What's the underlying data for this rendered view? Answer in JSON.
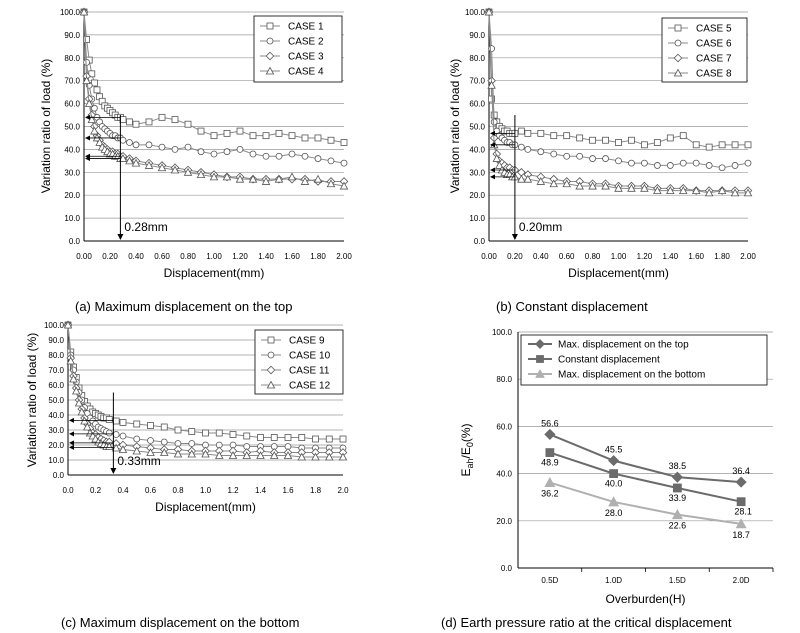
{
  "chart_data": [
    {
      "type": "scatter",
      "panel": "a",
      "caption": "(a)  Maximum displacement on the top",
      "xlabel": "Displacement(mm)",
      "ylabel": "Variation ratio of load (%)",
      "xlim": [
        0,
        2.0
      ],
      "ylim": [
        0,
        100
      ],
      "xticks": [
        "0.00",
        "0.20",
        "0.40",
        "0.60",
        "0.80",
        "1.00",
        "1.20",
        "1.40",
        "1.60",
        "1.80",
        "2.00"
      ],
      "yticks": [
        "0.0",
        "10.0",
        "20.0",
        "30.0",
        "40.0",
        "50.0",
        "60.0",
        "70.0",
        "80.0",
        "90.0",
        "100.0"
      ],
      "grid": true,
      "legend_position": "top-right",
      "annotation": {
        "text": "0.28mm",
        "x": 0.28
      },
      "series": [
        {
          "name": "CASE 1",
          "marker": "square",
          "x": [
            0,
            0.02,
            0.04,
            0.06,
            0.08,
            0.1,
            0.12,
            0.14,
            0.16,
            0.18,
            0.2,
            0.22,
            0.24,
            0.26,
            0.28,
            0.3,
            0.35,
            0.4,
            0.5,
            0.6,
            0.7,
            0.8,
            0.9,
            1.0,
            1.1,
            1.2,
            1.3,
            1.4,
            1.5,
            1.6,
            1.7,
            1.8,
            1.9,
            2.0
          ],
          "y": [
            100,
            88,
            79,
            73,
            69,
            66,
            63,
            61,
            59,
            58,
            57,
            56,
            55,
            54,
            54,
            53,
            52,
            51,
            52,
            54,
            53,
            51,
            48,
            46,
            47,
            48,
            46,
            46,
            47,
            46,
            45,
            45,
            44,
            43
          ]
        },
        {
          "name": "CASE 2",
          "marker": "circle",
          "x": [
            0,
            0.02,
            0.04,
            0.06,
            0.08,
            0.1,
            0.12,
            0.14,
            0.16,
            0.18,
            0.2,
            0.22,
            0.24,
            0.26,
            0.28,
            0.3,
            0.35,
            0.4,
            0.5,
            0.6,
            0.7,
            0.8,
            0.9,
            1.0,
            1.1,
            1.2,
            1.3,
            1.4,
            1.5,
            1.6,
            1.7,
            1.8,
            1.9,
            2.0
          ],
          "y": [
            100,
            78,
            68,
            62,
            58,
            54,
            52,
            50,
            49,
            48,
            47,
            46,
            46,
            45,
            45,
            44,
            43,
            42,
            42,
            41,
            40,
            41,
            39,
            38,
            39,
            40,
            38,
            37,
            37,
            38,
            37,
            36,
            35,
            34
          ]
        },
        {
          "name": "CASE 3",
          "marker": "diamond",
          "x": [
            0,
            0.02,
            0.04,
            0.06,
            0.08,
            0.1,
            0.12,
            0.14,
            0.16,
            0.18,
            0.2,
            0.22,
            0.24,
            0.26,
            0.28,
            0.3,
            0.35,
            0.4,
            0.5,
            0.6,
            0.7,
            0.8,
            0.9,
            1.0,
            1.1,
            1.2,
            1.3,
            1.4,
            1.5,
            1.6,
            1.7,
            1.8,
            1.9,
            2.0
          ],
          "y": [
            100,
            72,
            62,
            55,
            50,
            46,
            44,
            42,
            41,
            40,
            39,
            39,
            38,
            38,
            37,
            37,
            36,
            35,
            34,
            33,
            32,
            31,
            30,
            29,
            28,
            28,
            27,
            27,
            27,
            27,
            27,
            26,
            26,
            26
          ]
        },
        {
          "name": "CASE 4",
          "marker": "triangle",
          "x": [
            0,
            0.02,
            0.04,
            0.06,
            0.08,
            0.1,
            0.12,
            0.14,
            0.16,
            0.18,
            0.2,
            0.22,
            0.24,
            0.26,
            0.28,
            0.3,
            0.35,
            0.4,
            0.5,
            0.6,
            0.7,
            0.8,
            0.9,
            1.0,
            1.1,
            1.2,
            1.3,
            1.4,
            1.5,
            1.6,
            1.7,
            1.8,
            1.9,
            2.0
          ],
          "y": [
            100,
            70,
            60,
            53,
            48,
            45,
            43,
            41,
            40,
            39,
            38,
            38,
            37,
            37,
            36,
            36,
            35,
            34,
            33,
            32,
            31,
            30,
            29,
            28,
            28,
            27,
            27,
            26,
            27,
            28,
            26,
            27,
            25,
            24
          ]
        }
      ]
    },
    {
      "type": "scatter",
      "panel": "b",
      "caption": "(b)  Constant displacement",
      "xlabel": "Displacement(mm)",
      "ylabel": "Variation ratio of load (%)",
      "xlim": [
        0,
        2.0
      ],
      "ylim": [
        0,
        100
      ],
      "xticks": [
        "0.00",
        "0.20",
        "0.40",
        "0.60",
        "0.80",
        "1.00",
        "1.20",
        "1.40",
        "1.60",
        "1.80",
        "2.00"
      ],
      "yticks": [
        "0.0",
        "10.0",
        "20.0",
        "30.0",
        "40.0",
        "50.0",
        "60.0",
        "70.0",
        "80.0",
        "90.0",
        "100.0"
      ],
      "grid": true,
      "legend_position": "top-right",
      "annotation": {
        "text": "0.20mm",
        "x": 0.2
      },
      "series": [
        {
          "name": "CASE 5",
          "marker": "square",
          "x": [
            0,
            0.02,
            0.04,
            0.06,
            0.08,
            0.1,
            0.12,
            0.14,
            0.16,
            0.18,
            0.2,
            0.25,
            0.3,
            0.4,
            0.5,
            0.6,
            0.7,
            0.8,
            0.9,
            1.0,
            1.1,
            1.2,
            1.3,
            1.4,
            1.5,
            1.6,
            1.7,
            1.8,
            1.9,
            2.0
          ],
          "y": [
            100,
            62,
            55,
            52,
            50,
            49,
            48,
            48,
            47,
            47,
            47,
            48,
            47,
            47,
            46,
            46,
            45,
            44,
            44,
            43,
            44,
            42,
            43,
            45,
            46,
            42,
            41,
            42,
            42,
            42
          ]
        },
        {
          "name": "CASE 6",
          "marker": "circle",
          "x": [
            0,
            0.02,
            0.04,
            0.06,
            0.08,
            0.1,
            0.12,
            0.14,
            0.16,
            0.18,
            0.2,
            0.25,
            0.3,
            0.4,
            0.5,
            0.6,
            0.7,
            0.8,
            0.9,
            1.0,
            1.1,
            1.2,
            1.3,
            1.4,
            1.5,
            1.6,
            1.7,
            1.8,
            1.9,
            2.0
          ],
          "y": [
            100,
            84,
            52,
            48,
            46,
            45,
            44,
            43,
            43,
            42,
            42,
            41,
            40,
            39,
            38,
            37,
            37,
            36,
            36,
            35,
            34,
            34,
            33,
            33,
            34,
            34,
            33,
            32,
            33,
            34
          ]
        },
        {
          "name": "CASE 7",
          "marker": "diamond",
          "x": [
            0,
            0.02,
            0.04,
            0.06,
            0.08,
            0.1,
            0.12,
            0.14,
            0.16,
            0.18,
            0.2,
            0.25,
            0.3,
            0.4,
            0.5,
            0.6,
            0.7,
            0.8,
            0.9,
            1.0,
            1.1,
            1.2,
            1.3,
            1.4,
            1.5,
            1.6,
            1.7,
            1.8,
            1.9,
            2.0
          ],
          "y": [
            100,
            70,
            45,
            38,
            35,
            34,
            33,
            32,
            32,
            31,
            31,
            30,
            29,
            28,
            27,
            26,
            26,
            25,
            25,
            24,
            24,
            24,
            23,
            23,
            23,
            22,
            22,
            22,
            22,
            22
          ]
        },
        {
          "name": "CASE 8",
          "marker": "triangle",
          "x": [
            0,
            0.02,
            0.04,
            0.06,
            0.08,
            0.1,
            0.12,
            0.14,
            0.16,
            0.18,
            0.2,
            0.25,
            0.3,
            0.4,
            0.5,
            0.6,
            0.7,
            0.8,
            0.9,
            1.0,
            1.1,
            1.2,
            1.3,
            1.4,
            1.5,
            1.6,
            1.7,
            1.8,
            1.9,
            2.0
          ],
          "y": [
            100,
            68,
            42,
            36,
            33,
            31,
            30,
            29,
            29,
            28,
            28,
            27,
            27,
            26,
            25,
            25,
            24,
            24,
            24,
            23,
            23,
            23,
            22,
            22,
            22,
            22,
            21,
            22,
            21,
            21
          ]
        }
      ]
    },
    {
      "type": "scatter",
      "panel": "c",
      "caption": "(c)  Maximum displacement on the bottom",
      "xlabel": "Displacement(mm)",
      "ylabel": "Variation ratio of load (%)",
      "xlim": [
        0,
        2.0
      ],
      "ylim": [
        0,
        100
      ],
      "xticks": [
        "0.0",
        "0.2",
        "0.4",
        "0.6",
        "0.8",
        "1.0",
        "1.2",
        "1.4",
        "1.6",
        "1.8",
        "2.0"
      ],
      "yticks": [
        "0.0",
        "10.0",
        "20.0",
        "30.0",
        "40.0",
        "50.0",
        "60.0",
        "70.0",
        "80.0",
        "90.0",
        "100.0"
      ],
      "grid": true,
      "legend_position": "top-right",
      "annotation": {
        "text": "0.33mm",
        "x": 0.33
      },
      "series": [
        {
          "name": "CASE 9",
          "marker": "square",
          "x": [
            0,
            0.02,
            0.04,
            0.06,
            0.08,
            0.1,
            0.12,
            0.14,
            0.16,
            0.18,
            0.2,
            0.22,
            0.24,
            0.26,
            0.28,
            0.3,
            0.35,
            0.4,
            0.5,
            0.6,
            0.7,
            0.8,
            0.9,
            1.0,
            1.1,
            1.2,
            1.3,
            1.4,
            1.5,
            1.6,
            1.7,
            1.8,
            1.9,
            2.0
          ],
          "y": [
            100,
            82,
            72,
            65,
            58,
            53,
            49,
            46,
            44,
            42,
            41,
            40,
            39,
            38,
            38,
            37,
            36,
            35,
            34,
            33,
            32,
            30,
            29,
            28,
            28,
            27,
            26,
            25,
            25,
            25,
            25,
            24,
            24,
            24
          ]
        },
        {
          "name": "CASE 10",
          "marker": "circle",
          "x": [
            0,
            0.02,
            0.04,
            0.06,
            0.08,
            0.1,
            0.12,
            0.14,
            0.16,
            0.18,
            0.2,
            0.22,
            0.24,
            0.26,
            0.28,
            0.3,
            0.35,
            0.4,
            0.5,
            0.6,
            0.7,
            0.8,
            0.9,
            1.0,
            1.1,
            1.2,
            1.3,
            1.4,
            1.5,
            1.6,
            1.7,
            1.8,
            1.9,
            2.0
          ],
          "y": [
            100,
            80,
            70,
            62,
            55,
            50,
            45,
            41,
            38,
            36,
            34,
            32,
            31,
            30,
            29,
            28,
            27,
            26,
            24,
            23,
            22,
            21,
            21,
            20,
            20,
            20,
            19,
            19,
            19,
            19,
            18,
            18,
            18,
            18
          ]
        },
        {
          "name": "CASE 11",
          "marker": "diamond",
          "x": [
            0,
            0.02,
            0.04,
            0.06,
            0.08,
            0.1,
            0.12,
            0.14,
            0.16,
            0.18,
            0.2,
            0.22,
            0.24,
            0.26,
            0.28,
            0.3,
            0.35,
            0.4,
            0.5,
            0.6,
            0.7,
            0.8,
            0.9,
            1.0,
            1.1,
            1.2,
            1.3,
            1.4,
            1.5,
            1.6,
            1.7,
            1.8,
            1.9,
            2.0
          ],
          "y": [
            100,
            78,
            66,
            58,
            50,
            44,
            38,
            34,
            31,
            28,
            27,
            25,
            24,
            23,
            22,
            22,
            21,
            20,
            19,
            18,
            17,
            17,
            16,
            16,
            16,
            16,
            15,
            16,
            15,
            15,
            15,
            15,
            15,
            15
          ]
        },
        {
          "name": "CASE 12",
          "marker": "triangle",
          "x": [
            0,
            0.02,
            0.04,
            0.06,
            0.08,
            0.1,
            0.12,
            0.14,
            0.16,
            0.18,
            0.2,
            0.22,
            0.24,
            0.26,
            0.28,
            0.3,
            0.35,
            0.4,
            0.5,
            0.6,
            0.7,
            0.8,
            0.9,
            1.0,
            1.1,
            1.2,
            1.3,
            1.4,
            1.5,
            1.6,
            1.7,
            1.8,
            1.9,
            2.0
          ],
          "y": [
            100,
            76,
            64,
            56,
            48,
            42,
            36,
            32,
            28,
            26,
            24,
            22,
            21,
            20,
            19,
            19,
            18,
            17,
            16,
            15,
            15,
            14,
            14,
            14,
            13,
            13,
            13,
            13,
            13,
            13,
            12,
            12,
            12,
            12
          ]
        }
      ]
    },
    {
      "type": "line",
      "panel": "d",
      "caption": "(d)  Earth pressure ratio at the critical displacement",
      "xlabel": "Overburden(H)",
      "ylabel_main": "E",
      "ylabel_sub": "ah",
      "ylabel_mid": "/E",
      "ylabel_sub2": "0",
      "ylabel_tail": "(%)",
      "categories": [
        "0.5D",
        "1.0D",
        "1.5D",
        "2.0D"
      ],
      "ylim": [
        0,
        100
      ],
      "yticks": [
        "0.0",
        "20.0",
        "40.0",
        "60.0",
        "80.0",
        "100.0"
      ],
      "grid": true,
      "legend_position": "top",
      "series": [
        {
          "name": "Max. displacement on the top",
          "marker": "diamond",
          "color": "#6b6b6b",
          "values": [
            56.6,
            45.5,
            38.5,
            36.4
          ],
          "labels": [
            "56.6",
            "45.5",
            "38.5",
            "36.4"
          ]
        },
        {
          "name": "Constant displacement",
          "marker": "square",
          "color": "#6b6b6b",
          "values": [
            48.9,
            40.0,
            33.9,
            28.1
          ],
          "labels": [
            "48.9",
            "40.0",
            "33.9",
            "28.1"
          ]
        },
        {
          "name": "Max. displacement on the bottom",
          "marker": "triangle",
          "color": "#b0b0b0",
          "values": [
            36.2,
            28.0,
            22.6,
            18.7
          ],
          "labels": [
            "36.2",
            "28.0",
            "22.6",
            "18.7"
          ]
        }
      ]
    }
  ]
}
